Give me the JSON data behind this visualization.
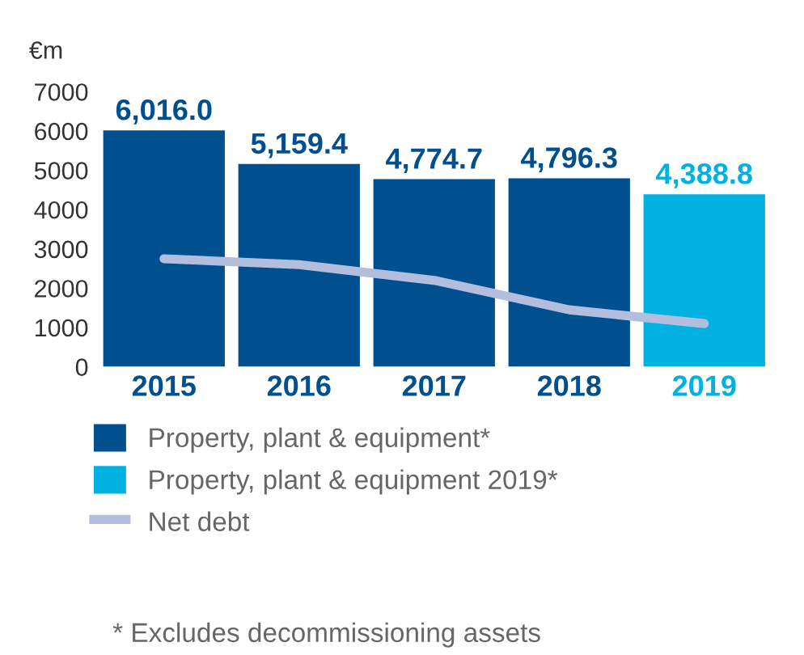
{
  "chart_data": {
    "type": "bar",
    "ylabel": "€m",
    "categories": [
      "2015",
      "2016",
      "2017",
      "2018",
      "2019"
    ],
    "series": [
      {
        "name": "Property, plant & equipment*",
        "color": "#004f8f",
        "values": [
          6016.0,
          5159.4,
          4774.7,
          4796.3,
          null
        ],
        "value_labels": [
          "6,016.0",
          "5,159.4",
          "4,774.7",
          "4,796.3",
          null
        ]
      },
      {
        "name": "Property, plant & equipment 2019*",
        "color": "#00b1e2",
        "values": [
          null,
          null,
          null,
          null,
          4388.8
        ],
        "value_labels": [
          null,
          null,
          null,
          null,
          "4,388.8"
        ]
      },
      {
        "name": "Net debt",
        "type": "line",
        "color": "#b3bede",
        "values": [
          2750,
          2600,
          2200,
          1450,
          1100
        ]
      }
    ],
    "ylim": [
      0,
      7000
    ],
    "yticks": [
      0,
      1000,
      2000,
      3000,
      4000,
      5000,
      6000,
      7000
    ],
    "grid": false,
    "legend": "bottom",
    "marker": "none",
    "annotations": [
      "* Excludes decommissioning assets"
    ]
  }
}
